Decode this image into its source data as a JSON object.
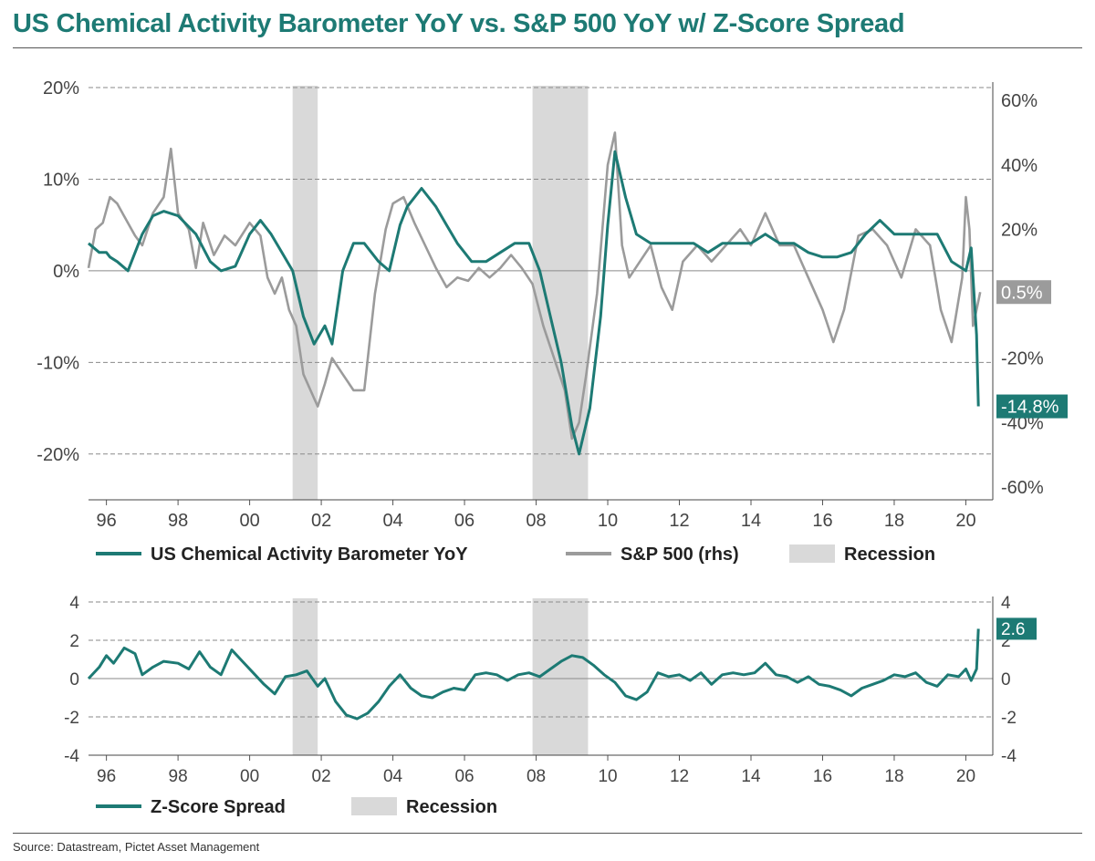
{
  "title": "US Chemical Activity Barometer YoY vs. S&P 500 YoY w/ Z-Score Spread",
  "source": "Source: Datastream, Pictet Asset Management",
  "colors": {
    "cab": "#1d7a74",
    "sp": "#9b9b9b",
    "recession": "#d9d9d9",
    "grid": "#8a8a8a",
    "axis_text": "#444444"
  },
  "chart_data": [
    {
      "type": "line",
      "x_ticks": [
        "96",
        "98",
        "00",
        "02",
        "04",
        "06",
        "08",
        "10",
        "12",
        "14",
        "16",
        "18",
        "20"
      ],
      "y_left": {
        "ticks": [
          "20%",
          "10%",
          "0%",
          "-10%",
          "-20%"
        ],
        "range": [
          -25,
          20
        ]
      },
      "y_right": {
        "ticks": [
          "60%",
          "40%",
          "20%",
          "-20%",
          "-40%",
          "-60%"
        ],
        "range": [
          -64,
          64
        ]
      },
      "grid": true,
      "recessions": [
        [
          2001.2,
          2001.9
        ],
        [
          2007.9,
          2009.45
        ]
      ],
      "legend": {
        "cab": "US Chemical Activity Barometer YoY",
        "sp": "S&P 500 (rhs)",
        "recession": "Recession"
      },
      "end_labels": {
        "sp": "0.5%",
        "cab": "-14.8%"
      },
      "series": [
        {
          "key": "cab",
          "axis": "left",
          "x": [
            1995.5,
            1995.8,
            1996.0,
            1996.1,
            1996.3,
            1996.6,
            1997.0,
            1997.3,
            1997.6,
            1998.0,
            1998.5,
            1998.9,
            1999.2,
            1999.6,
            2000.0,
            2000.3,
            2000.6,
            2000.9,
            2001.2,
            2001.5,
            2001.8,
            2002.1,
            2002.3,
            2002.6,
            2002.9,
            2003.2,
            2003.6,
            2003.9,
            2004.2,
            2004.4,
            2004.8,
            2005.2,
            2005.5,
            2005.8,
            2006.2,
            2006.6,
            2007.0,
            2007.4,
            2007.8,
            2008.1,
            2008.4,
            2008.7,
            2009.0,
            2009.2,
            2009.5,
            2009.8,
            2010.0,
            2010.2,
            2010.5,
            2010.8,
            2011.2,
            2011.6,
            2012.0,
            2012.4,
            2012.8,
            2013.2,
            2013.6,
            2014.0,
            2014.4,
            2014.8,
            2015.2,
            2015.6,
            2016.0,
            2016.4,
            2016.8,
            2017.2,
            2017.6,
            2018.0,
            2018.4,
            2018.8,
            2019.2,
            2019.6,
            2020.0,
            2020.15,
            2020.3,
            2020.35
          ],
          "y": [
            3,
            2,
            2,
            1.5,
            1,
            0,
            4,
            6,
            6.5,
            6,
            4,
            1,
            0,
            0.5,
            4,
            5.5,
            4,
            2,
            0,
            -5,
            -8,
            -6,
            -8,
            0,
            3,
            3,
            1,
            0,
            5,
            7,
            9,
            7,
            5,
            3,
            1,
            1,
            2,
            3,
            3,
            0,
            -5,
            -10,
            -17,
            -20,
            -15,
            -5,
            5,
            13,
            8,
            4,
            3,
            3,
            3,
            3,
            2,
            3,
            3,
            3,
            4,
            3,
            3,
            2,
            1.5,
            1.5,
            2,
            4,
            5.5,
            4,
            4,
            4,
            4,
            1,
            0,
            2.5,
            -7,
            -14.8
          ]
        },
        {
          "key": "sp",
          "axis": "right",
          "x": [
            1995.5,
            1995.7,
            1995.9,
            1996.1,
            1996.3,
            1996.5,
            1996.8,
            1997.0,
            1997.3,
            1997.6,
            1997.8,
            1998.0,
            1998.3,
            1998.5,
            1998.7,
            1999.0,
            1999.3,
            1999.6,
            2000.0,
            2000.3,
            2000.5,
            2000.7,
            2000.9,
            2001.1,
            2001.3,
            2001.5,
            2001.7,
            2001.9,
            2002.1,
            2002.3,
            2002.6,
            2002.9,
            2003.2,
            2003.5,
            2003.8,
            2004.0,
            2004.3,
            2004.6,
            2004.9,
            2005.2,
            2005.5,
            2005.8,
            2006.1,
            2006.4,
            2006.7,
            2007.0,
            2007.3,
            2007.6,
            2007.9,
            2008.2,
            2008.5,
            2008.8,
            2009.0,
            2009.2,
            2009.4,
            2009.7,
            2010.0,
            2010.2,
            2010.4,
            2010.6,
            2010.9,
            2011.2,
            2011.5,
            2011.8,
            2012.1,
            2012.5,
            2012.9,
            2013.3,
            2013.7,
            2014.0,
            2014.4,
            2014.8,
            2015.2,
            2015.6,
            2016.0,
            2016.3,
            2016.6,
            2017.0,
            2017.4,
            2017.8,
            2018.2,
            2018.6,
            2019.0,
            2019.3,
            2019.6,
            2019.9,
            2020.0,
            2020.1,
            2020.2,
            2020.3,
            2020.4
          ],
          "y": [
            8,
            20,
            22,
            30,
            28,
            24,
            18,
            15,
            25,
            30,
            45,
            25,
            20,
            8,
            22,
            12,
            18,
            15,
            22,
            18,
            5,
            0,
            5,
            -5,
            -10,
            -25,
            -30,
            -35,
            -28,
            -20,
            -25,
            -30,
            -30,
            0,
            20,
            28,
            30,
            22,
            15,
            8,
            2,
            5,
            4,
            8,
            5,
            8,
            12,
            8,
            3,
            -10,
            -20,
            -30,
            -45,
            -40,
            -25,
            0,
            40,
            50,
            15,
            5,
            10,
            15,
            2,
            -5,
            10,
            15,
            10,
            15,
            20,
            15,
            25,
            15,
            15,
            5,
            -5,
            -15,
            -5,
            18,
            20,
            15,
            5,
            20,
            15,
            -5,
            -15,
            5,
            30,
            20,
            -10,
            -5,
            0.5
          ]
        }
      ]
    },
    {
      "type": "line",
      "x_ticks": [
        "96",
        "98",
        "00",
        "02",
        "04",
        "06",
        "08",
        "10",
        "12",
        "14",
        "16",
        "18",
        "20"
      ],
      "y_left": {
        "ticks": [
          "4",
          "2",
          "0",
          "-2",
          "-4"
        ],
        "range": [
          -4,
          4
        ]
      },
      "y_right": {
        "ticks": [
          "4",
          "2",
          "0",
          "-2",
          "-4"
        ],
        "range": [
          -4,
          4
        ]
      },
      "grid": true,
      "recessions": [
        [
          2001.2,
          2001.9
        ],
        [
          2007.9,
          2009.45
        ]
      ],
      "legend": {
        "z": "Z-Score Spread",
        "recession": "Recession"
      },
      "end_labels": {
        "z": "2.6"
      },
      "series": [
        {
          "key": "z",
          "axis": "left",
          "x": [
            1995.5,
            1995.8,
            1996.0,
            1996.2,
            1996.5,
            1996.8,
            1997.0,
            1997.3,
            1997.6,
            1998.0,
            1998.3,
            1998.6,
            1998.9,
            1999.2,
            1999.5,
            1999.8,
            2000.1,
            2000.4,
            2000.7,
            2001.0,
            2001.3,
            2001.6,
            2001.9,
            2002.1,
            2002.4,
            2002.7,
            2003.0,
            2003.3,
            2003.6,
            2003.9,
            2004.2,
            2004.5,
            2004.8,
            2005.1,
            2005.4,
            2005.7,
            2006.0,
            2006.3,
            2006.6,
            2006.9,
            2007.2,
            2007.5,
            2007.8,
            2008.1,
            2008.4,
            2008.7,
            2009.0,
            2009.3,
            2009.6,
            2009.9,
            2010.2,
            2010.5,
            2010.8,
            2011.1,
            2011.4,
            2011.7,
            2012.0,
            2012.3,
            2012.6,
            2012.9,
            2013.2,
            2013.5,
            2013.8,
            2014.1,
            2014.4,
            2014.7,
            2015.0,
            2015.3,
            2015.6,
            2015.9,
            2016.2,
            2016.5,
            2016.8,
            2017.1,
            2017.4,
            2017.7,
            2018.0,
            2018.3,
            2018.6,
            2018.9,
            2019.2,
            2019.5,
            2019.8,
            2020.0,
            2020.15,
            2020.3,
            2020.35
          ],
          "y": [
            0,
            0.6,
            1.2,
            0.8,
            1.6,
            1.3,
            0.2,
            0.6,
            0.9,
            0.8,
            0.5,
            1.4,
            0.6,
            0.2,
            1.5,
            0.9,
            0.3,
            -0.3,
            -0.8,
            0.1,
            0.2,
            0.4,
            -0.4,
            0.0,
            -1.2,
            -1.9,
            -2.1,
            -1.8,
            -1.2,
            -0.4,
            0.2,
            -0.5,
            -0.9,
            -1.0,
            -0.7,
            -0.5,
            -0.6,
            0.2,
            0.3,
            0.2,
            -0.1,
            0.2,
            0.3,
            0.1,
            0.5,
            0.9,
            1.2,
            1.1,
            0.7,
            0.2,
            -0.2,
            -0.9,
            -1.1,
            -0.7,
            0.3,
            0.1,
            0.2,
            -0.1,
            0.3,
            -0.3,
            0.2,
            0.3,
            0.2,
            0.3,
            0.8,
            0.2,
            0.1,
            -0.2,
            0.1,
            -0.3,
            -0.4,
            -0.6,
            -0.9,
            -0.5,
            -0.3,
            -0.1,
            0.2,
            0.1,
            0.3,
            -0.2,
            -0.4,
            0.2,
            0.1,
            0.5,
            -0.1,
            0.5,
            2.6
          ]
        }
      ]
    }
  ]
}
